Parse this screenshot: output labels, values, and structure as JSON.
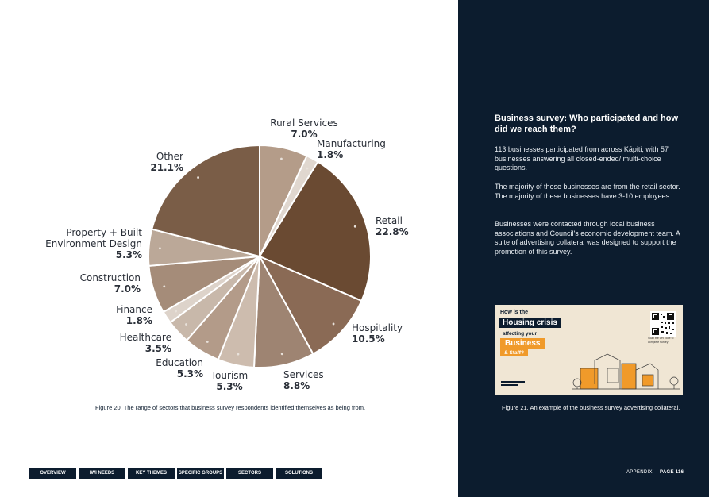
{
  "chart_data": {
    "type": "pie",
    "slices": [
      {
        "label": "Rural Services",
        "value": 7.0,
        "display": "7.0%",
        "color": "#b49c89"
      },
      {
        "label": "Manufacturing",
        "value": 1.8,
        "display": "1.8%",
        "color": "#e0d7cf"
      },
      {
        "label": "Retail",
        "value": 22.8,
        "display": "22.8%",
        "color": "#6a4a32"
      },
      {
        "label": "Hospitality",
        "value": 10.5,
        "display": "10.5%",
        "color": "#8a6a55"
      },
      {
        "label": "Services",
        "value": 8.8,
        "display": "8.8%",
        "color": "#9e8472"
      },
      {
        "label": "Tourism",
        "value": 5.3,
        "display": "5.3%",
        "color": "#cdbcae"
      },
      {
        "label": "Education",
        "value": 5.3,
        "display": "5.3%",
        "color": "#b39b89"
      },
      {
        "label": "Healthcare",
        "value": 3.5,
        "display": "3.5%",
        "color": "#c8b8aa"
      },
      {
        "label": "Finance",
        "value": 1.8,
        "display": "1.8%",
        "color": "#ddd3ca"
      },
      {
        "label": "Construction",
        "value": 7.0,
        "display": "7.0%",
        "color": "#a58c79"
      },
      {
        "label": "Property + Built Environment Design",
        "label_lines": [
          "Property + Built",
          "Environment Design"
        ],
        "value": 5.3,
        "display": "5.3%",
        "color": "#bba898"
      },
      {
        "label": "Other",
        "value": 21.1,
        "display": "21.1%",
        "color": "#7a5d47"
      }
    ]
  },
  "left": {
    "caption": "Figure 20. The range of sectors that business survey respondents identified themselves as being from."
  },
  "nav": {
    "tabs": [
      {
        "label": "OVERVIEW"
      },
      {
        "label": "IWI NEEDS"
      },
      {
        "label": "KEY THEMES"
      },
      {
        "label": "SPECIFIC GROUPS"
      },
      {
        "label": "SECTORS"
      },
      {
        "label": "SOLUTIONS"
      }
    ]
  },
  "right": {
    "title": "Business survey: Who participated and how did we reach them?",
    "p1": "113 businesses participated from across Kāpiti, with 57 businesses answering all closed-ended/ multi-choice questions.",
    "p2": "The majority of these businesses are from the retail sector. The majority of these businesses have 3-10 employees.",
    "p3": "Businesses were contacted through local business associations and Council's economic development team. A suite of advertising collateral was designed to support the promotion of this survey.",
    "ad": {
      "line1": "How is the",
      "line2": "Housing crisis",
      "line3": "affecting your",
      "line4": "Business",
      "line5": "& Staff?",
      "qr_text": "Scan the QR code to complete survey"
    },
    "caption": "Figure 21. An example of the business survey advertising collateral.",
    "footer_section": "APPENDIX",
    "footer_page": "PAGE 116"
  },
  "colors": {
    "navy": "#0c1c2e",
    "orange": "#f09a2a",
    "paper": "#f0e6d4"
  }
}
